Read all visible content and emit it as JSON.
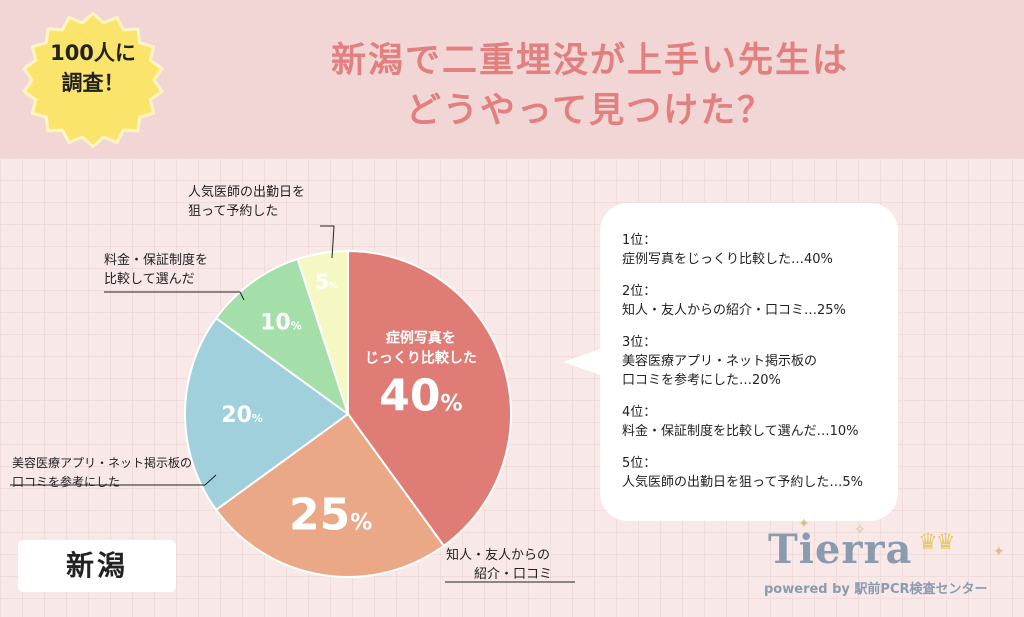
{
  "header": {
    "badge": [
      "100人に",
      "調査！"
    ],
    "title": [
      "新潟で二重埋没が上手い先生は",
      "どうやって見つけた？"
    ]
  },
  "chart_data": {
    "type": "pie",
    "title": "新潟で二重埋没が上手い先生はどうやって見つけた？",
    "unit": "%",
    "slices": [
      {
        "label": "症例写真をじっくり比較した",
        "value": 40,
        "color": "#de7c75"
      },
      {
        "label": "知人・友人からの紹介・口コミ",
        "value": 25,
        "color": "#eaa886"
      },
      {
        "label": "美容医療アプリ・ネット掲示板の口コミを参考にした",
        "value": 20,
        "color": "#9fd0dc"
      },
      {
        "label": "料金・保証制度を比較して選んだ",
        "value": 10,
        "color": "#a4dfaa"
      },
      {
        "label": "人気医師の出勤日を狙って予約した",
        "value": 5,
        "color": "#f6f8c4"
      }
    ],
    "inside_label": [
      "症例写真を",
      "じっくり比較した"
    ]
  },
  "annotations": {
    "a5": [
      "人気医師の出勤日を",
      "狙って予約した"
    ],
    "a10": [
      "料金・保証制度を",
      "比較して選んだ"
    ],
    "a20": [
      "美容医療アプリ・ネット掲示板の",
      "口コミを参考にした"
    ],
    "a25": [
      "知人・友人からの",
      "紹介・口コミ"
    ]
  },
  "ranking": [
    {
      "rank": "1位：",
      "lines": [
        "症例写真をじっくり比較した…40%"
      ]
    },
    {
      "rank": "2位：",
      "lines": [
        "知人・友人からの紹介・口コミ…25%"
      ]
    },
    {
      "rank": "3位：",
      "lines": [
        "美容医療アプリ・ネット掲示板の",
        "口コミを参考にした…20%"
      ]
    },
    {
      "rank": "4位：",
      "lines": [
        "料金・保証制度を比較して選んだ…10%"
      ]
    },
    {
      "rank": "5位：",
      "lines": [
        "人気医師の出勤日を狙って予約した…5%"
      ]
    }
  ],
  "region": "新潟",
  "logo": {
    "name": "Tierra",
    "sub": "powered by 駅前PCR検査センター"
  },
  "colors": {
    "title": "#e27f7f",
    "badge": "#fbe46c",
    "background": "#f8e8e8"
  }
}
